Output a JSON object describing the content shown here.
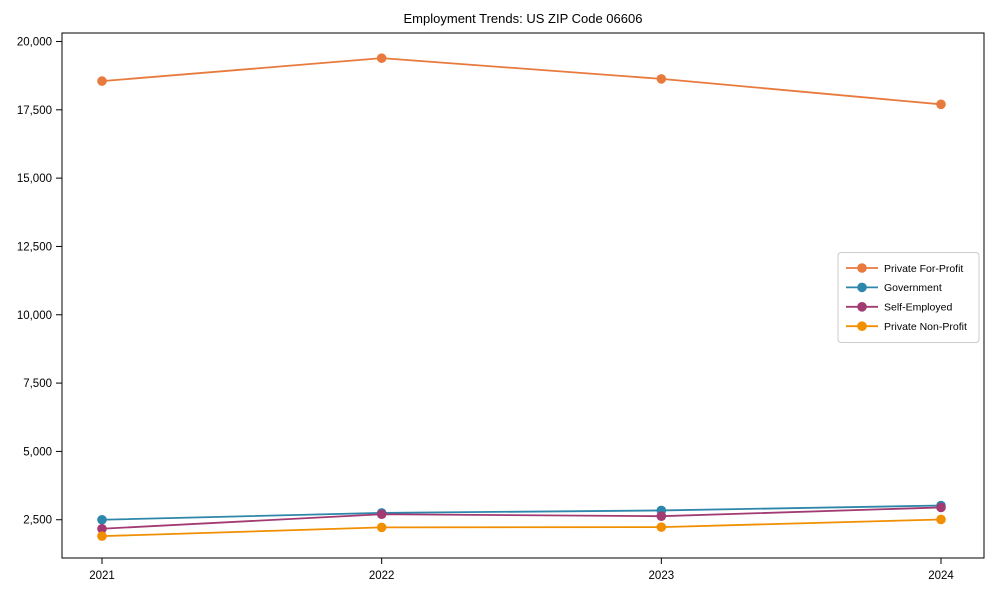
{
  "chart_data": {
    "type": "line",
    "title": "Employment Trends: US ZIP Code 06606",
    "xlabel": "",
    "ylabel": "",
    "categories": [
      "2021",
      "2022",
      "2023",
      "2024"
    ],
    "series": [
      {
        "name": "Private For-Profit",
        "color": "#E87A3E",
        "values": [
          18550,
          19390,
          18630,
          17700
        ]
      },
      {
        "name": "Government",
        "color": "#2E86AB",
        "values": [
          2500,
          2750,
          2840,
          3020
        ]
      },
      {
        "name": "Self-Employed",
        "color": "#A23B72",
        "values": [
          2170,
          2700,
          2630,
          2950
        ]
      },
      {
        "name": "Private Non-Profit",
        "color": "#F18F01",
        "values": [
          1900,
          2220,
          2230,
          2510
        ]
      }
    ],
    "yticks": [
      2500,
      5000,
      7500,
      10000,
      12500,
      15000,
      17500,
      20000
    ],
    "ylim": [
      1100,
      20310
    ],
    "grid": false,
    "legend_position": "middle-right",
    "axis_color": "#000000",
    "legend_border_color": "#cccccc",
    "background_color": "#ffffff"
  }
}
